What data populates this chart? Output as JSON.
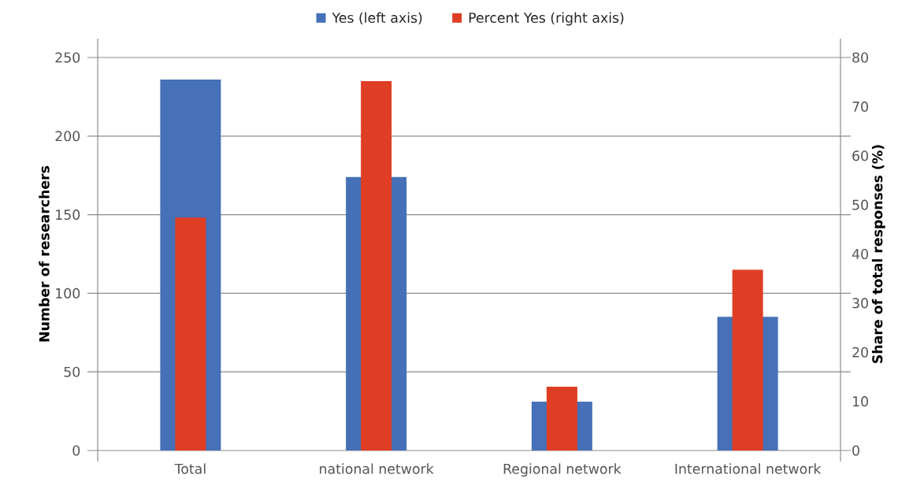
{
  "chart_data": {
    "type": "bar",
    "categories": [
      "Total",
      "national network",
      "Regional network",
      "International network"
    ],
    "ylabel": "Number of researchers",
    "y2label": "Share of total responses (%)",
    "series": [
      {
        "name": "Yes (left axis)",
        "color": "#4670b7",
        "values": [
          236,
          174,
          31,
          85
        ]
      },
      {
        "name": "Percent Yes (right axis)",
        "color": "#df3e24",
        "axis": "y2",
        "values": [
          47.4,
          75.2,
          13.0,
          36.8
        ]
      }
    ],
    "ylim": [
      0,
      250
    ],
    "yticks": [
      0,
      50,
      100,
      150,
      200,
      250
    ],
    "y2lim": [
      0,
      80
    ],
    "y2ticks": [
      0,
      10,
      20,
      30,
      40,
      50,
      60,
      70,
      80
    ],
    "grid": "y",
    "legend": "top"
  }
}
